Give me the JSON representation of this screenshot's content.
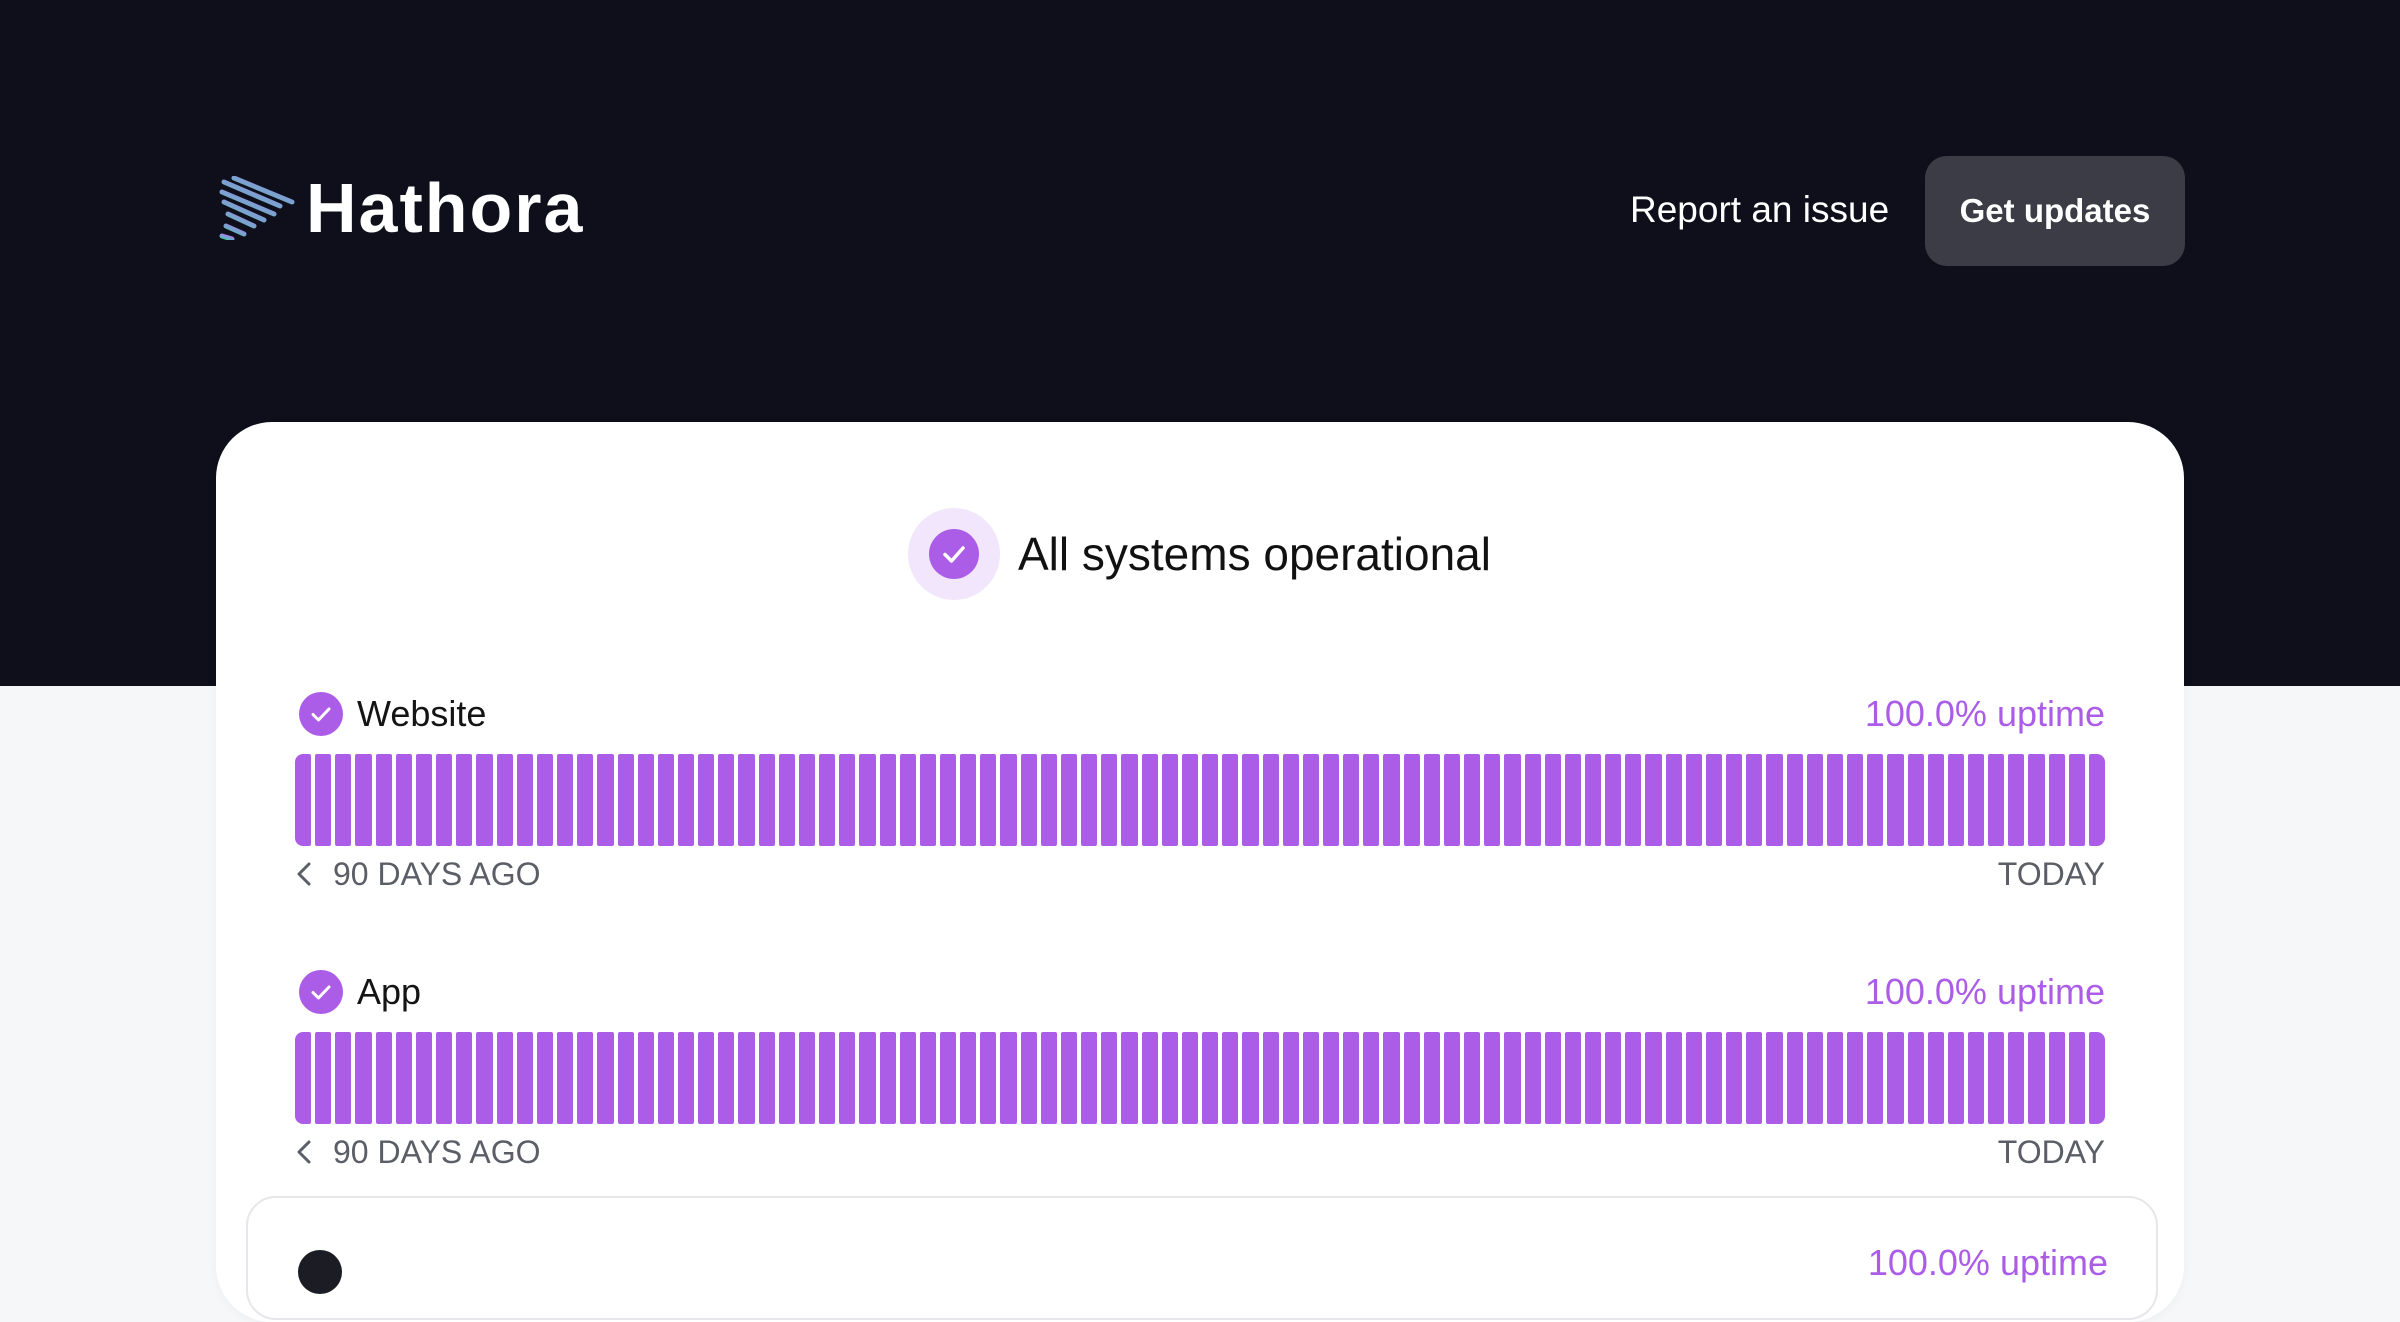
{
  "header": {
    "brand": "Hathora",
    "report_label": "Report an issue",
    "updates_label": "Get updates"
  },
  "summary": {
    "status_text": "All systems operational",
    "icon": "check-circle-icon"
  },
  "components": [
    {
      "name": "Website",
      "uptime": "100.0% uptime",
      "days_ago_label": "90 DAYS AGO",
      "today_label": "TODAY",
      "day_status": "operational"
    },
    {
      "name": "App",
      "uptime": "100.0% uptime",
      "days_ago_label": "90 DAYS AGO",
      "today_label": "TODAY",
      "day_status": "operational"
    }
  ],
  "group_partial": {
    "name": "",
    "uptime": "100.0% uptime"
  },
  "colors": {
    "hero_bg": "#0e0f1b",
    "accent": "#ac5de8",
    "button_bg": "#3b3c45"
  }
}
